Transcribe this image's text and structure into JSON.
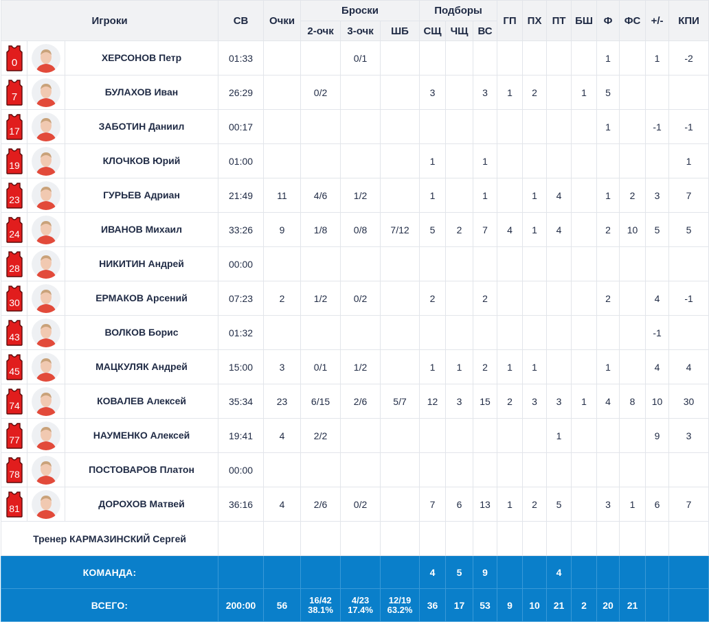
{
  "header": {
    "players": "Игроки",
    "time": "СВ",
    "points": "Очки",
    "shots": "Броски",
    "two": "2-очк",
    "three": "3-очк",
    "ft": "ШБ",
    "rebounds": "Подборы",
    "def_reb": "СЩ",
    "off_reb": "ЧЩ",
    "tot_reb": "ВС",
    "assists": "ГП",
    "turnovers": "ПХ",
    "steals": "ПТ",
    "blocks": "БШ",
    "fouls": "Ф",
    "fouls_drawn": "ФС",
    "plus_minus": "+/-",
    "efficiency": "КПИ"
  },
  "players": [
    {
      "number": "0",
      "name": "ХЕРСОНОВ Петр",
      "time": "01:33",
      "pts": "",
      "two": "",
      "three": "0/1",
      "ft": "",
      "dr": "",
      "or": "",
      "tr": "",
      "ast": "",
      "to": "",
      "stl": "",
      "blk": "",
      "pf": "1",
      "fd": "",
      "pm": "1",
      "eff": "-2"
    },
    {
      "number": "7",
      "name": "БУЛАХОВ Иван",
      "time": "26:29",
      "pts": "",
      "two": "0/2",
      "three": "",
      "ft": "",
      "dr": "3",
      "or": "",
      "tr": "3",
      "ast": "1",
      "to": "2",
      "stl": "",
      "blk": "1",
      "pf": "5",
      "fd": "",
      "pm": "",
      "eff": ""
    },
    {
      "number": "17",
      "name": "ЗАБОТИН Даниил",
      "time": "00:17",
      "pts": "",
      "two": "",
      "three": "",
      "ft": "",
      "dr": "",
      "or": "",
      "tr": "",
      "ast": "",
      "to": "",
      "stl": "",
      "blk": "",
      "pf": "1",
      "fd": "",
      "pm": "-1",
      "eff": "-1"
    },
    {
      "number": "19",
      "name": "КЛОЧКОВ Юрий",
      "time": "01:00",
      "pts": "",
      "two": "",
      "three": "",
      "ft": "",
      "dr": "1",
      "or": "",
      "tr": "1",
      "ast": "",
      "to": "",
      "stl": "",
      "blk": "",
      "pf": "",
      "fd": "",
      "pm": "",
      "eff": "1"
    },
    {
      "number": "23",
      "name": "ГУРЬЕВ Адриан",
      "time": "21:49",
      "pts": "11",
      "two": "4/6",
      "three": "1/2",
      "ft": "",
      "dr": "1",
      "or": "",
      "tr": "1",
      "ast": "",
      "to": "1",
      "stl": "4",
      "blk": "",
      "pf": "1",
      "fd": "2",
      "pm": "3",
      "eff": "7"
    },
    {
      "number": "24",
      "name": "ИВАНОВ Михаил",
      "time": "33:26",
      "pts": "9",
      "two": "1/8",
      "three": "0/8",
      "ft": "7/12",
      "dr": "5",
      "or": "2",
      "tr": "7",
      "ast": "4",
      "to": "1",
      "stl": "4",
      "blk": "",
      "pf": "2",
      "fd": "10",
      "pm": "5",
      "eff": "5"
    },
    {
      "number": "28",
      "name": "НИКИТИН Андрей",
      "time": "00:00",
      "pts": "",
      "two": "",
      "three": "",
      "ft": "",
      "dr": "",
      "or": "",
      "tr": "",
      "ast": "",
      "to": "",
      "stl": "",
      "blk": "",
      "pf": "",
      "fd": "",
      "pm": "",
      "eff": ""
    },
    {
      "number": "30",
      "name": "ЕРМАКОВ Арсений",
      "time": "07:23",
      "pts": "2",
      "two": "1/2",
      "three": "0/2",
      "ft": "",
      "dr": "2",
      "or": "",
      "tr": "2",
      "ast": "",
      "to": "",
      "stl": "",
      "blk": "",
      "pf": "2",
      "fd": "",
      "pm": "4",
      "eff": "-1"
    },
    {
      "number": "43",
      "name": "ВОЛКОВ Борис",
      "time": "01:32",
      "pts": "",
      "two": "",
      "three": "",
      "ft": "",
      "dr": "",
      "or": "",
      "tr": "",
      "ast": "",
      "to": "",
      "stl": "",
      "blk": "",
      "pf": "",
      "fd": "",
      "pm": "-1",
      "eff": ""
    },
    {
      "number": "45",
      "name": "МАЦКУЛЯК Андрей",
      "time": "15:00",
      "pts": "3",
      "two": "0/1",
      "three": "1/2",
      "ft": "",
      "dr": "1",
      "or": "1",
      "tr": "2",
      "ast": "1",
      "to": "1",
      "stl": "",
      "blk": "",
      "pf": "1",
      "fd": "",
      "pm": "4",
      "eff": "4"
    },
    {
      "number": "74",
      "name": "КОВАЛЕВ Алексей",
      "time": "35:34",
      "pts": "23",
      "two": "6/15",
      "three": "2/6",
      "ft": "5/7",
      "dr": "12",
      "or": "3",
      "tr": "15",
      "ast": "2",
      "to": "3",
      "stl": "3",
      "blk": "1",
      "pf": "4",
      "fd": "8",
      "pm": "10",
      "eff": "30"
    },
    {
      "number": "77",
      "name": "НАУМЕНКО Алексей",
      "time": "19:41",
      "pts": "4",
      "two": "2/2",
      "three": "",
      "ft": "",
      "dr": "",
      "or": "",
      "tr": "",
      "ast": "",
      "to": "",
      "stl": "1",
      "blk": "",
      "pf": "",
      "fd": "",
      "pm": "9",
      "eff": "3"
    },
    {
      "number": "78",
      "name": "ПОСТОВАРОВ Платон",
      "time": "00:00",
      "pts": "",
      "two": "",
      "three": "",
      "ft": "",
      "dr": "",
      "or": "",
      "tr": "",
      "ast": "",
      "to": "",
      "stl": "",
      "blk": "",
      "pf": "",
      "fd": "",
      "pm": "",
      "eff": ""
    },
    {
      "number": "81",
      "name": "ДОРОХОВ Матвей",
      "time": "36:16",
      "pts": "4",
      "two": "2/6",
      "three": "0/2",
      "ft": "",
      "dr": "7",
      "or": "6",
      "tr": "13",
      "ast": "1",
      "to": "2",
      "stl": "5",
      "blk": "",
      "pf": "3",
      "fd": "1",
      "pm": "6",
      "eff": "7"
    }
  ],
  "coach": "Тренер КАРМАЗИНСКИЙ Сергей",
  "team": {
    "label": "КОМАНДА:",
    "dr": "4",
    "or": "5",
    "tr": "9",
    "stl": "4"
  },
  "total": {
    "label": "ВСЕГО:",
    "time": "200:00",
    "pts": "56",
    "two": "16/42",
    "two_pct": "38.1%",
    "three": "4/23",
    "three_pct": "17.4%",
    "ft": "12/19",
    "ft_pct": "63.2%",
    "dr": "36",
    "or": "17",
    "tr": "53",
    "ast": "9",
    "to": "10",
    "stl": "21",
    "blk": "2",
    "pf": "20",
    "fd": "21",
    "pm": "",
    "eff": ""
  },
  "colors": {
    "jersey": "#e11d1d",
    "jersey_outline": "#5a0a0a",
    "header_bg": "#f1f2f4",
    "total_bg": "#0a7fca"
  }
}
